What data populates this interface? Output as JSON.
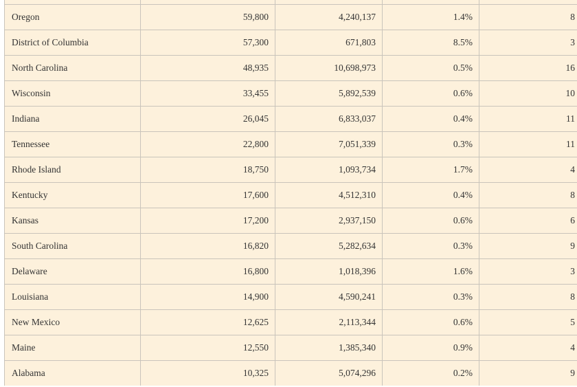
{
  "rows": [
    [
      "Oregon",
      "59,800",
      "4,240,137",
      "1.4%",
      "8"
    ],
    [
      "District of Columbia",
      "57,300",
      "671,803",
      "8.5%",
      "3"
    ],
    [
      "North Carolina",
      "48,935",
      "10,698,973",
      "0.5%",
      "16"
    ],
    [
      "Wisconsin",
      "33,455",
      "5,892,539",
      "0.6%",
      "10"
    ],
    [
      "Indiana",
      "26,045",
      "6,833,037",
      "0.4%",
      "11"
    ],
    [
      "Tennessee",
      "22,800",
      "7,051,339",
      "0.3%",
      "11"
    ],
    [
      "Rhode Island",
      "18,750",
      "1,093,734",
      "1.7%",
      "4"
    ],
    [
      "Kentucky",
      "17,600",
      "4,512,310",
      "0.4%",
      "8"
    ],
    [
      "Kansas",
      "17,200",
      "2,937,150",
      "0.6%",
      "6"
    ],
    [
      "South Carolina",
      "16,820",
      "5,282,634",
      "0.3%",
      "9"
    ],
    [
      "Delaware",
      "16,800",
      "1,018,396",
      "1.6%",
      "3"
    ],
    [
      "Louisiana",
      "14,900",
      "4,590,241",
      "0.3%",
      "8"
    ],
    [
      "New Mexico",
      "12,625",
      "2,113,344",
      "0.6%",
      "5"
    ],
    [
      "Maine",
      "12,550",
      "1,385,340",
      "0.9%",
      "4"
    ],
    [
      "Alabama",
      "10,325",
      "5,074,296",
      "0.2%",
      "9"
    ]
  ]
}
